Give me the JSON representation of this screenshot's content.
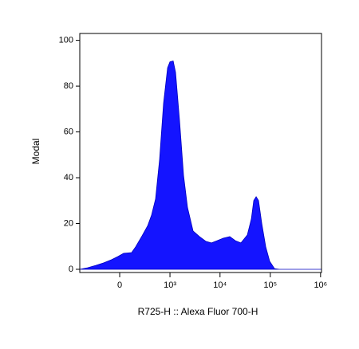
{
  "chart_data": {
    "type": "area",
    "xlabel": "R725-H :: Alexa Fluor 700-H",
    "ylabel": "Modal",
    "xscale": "biexponential",
    "color": "#1414ff",
    "x": [
      -612,
      -412,
      -269,
      -161,
      -76,
      -15,
      37,
      116,
      161,
      245,
      336,
      412,
      503,
      612,
      740,
      895,
      1000,
      1161,
      1297,
      1559,
      1876,
      2252,
      2909,
      3899,
      5232,
      6747,
      8726,
      11676,
      15655,
      20200,
      26058,
      34946,
      42016,
      46864,
      52318,
      58378,
      67670,
      81204,
      97364,
      121200,
      150900,
      1044000
    ],
    "values": [
      0,
      0.7,
      1.7,
      2.8,
      4.2,
      5.6,
      7,
      7.3,
      9.8,
      14.6,
      19,
      23.7,
      30.7,
      48,
      72.5,
      88,
      90.6,
      91,
      86,
      65,
      41,
      27,
      16.7,
      14.3,
      12.2,
      11.5,
      12.5,
      13.6,
      14.3,
      12.5,
      11.5,
      15,
      22,
      30,
      31.7,
      30,
      20,
      9.8,
      3.5,
      0.3,
      0,
      0
    ],
    "xlim": [
      -612,
      1044000
    ],
    "xticks": [
      0,
      {
        "value": 1000,
        "label": "10³"
      },
      {
        "value": 10000,
        "label": "10⁴"
      },
      {
        "value": 100000,
        "label": "10⁵"
      },
      {
        "value": 1000000,
        "label": "10⁶"
      }
    ],
    "ylim": [
      -1.4,
      103
    ],
    "yticks": [
      0,
      20,
      40,
      60,
      80,
      100
    ]
  }
}
